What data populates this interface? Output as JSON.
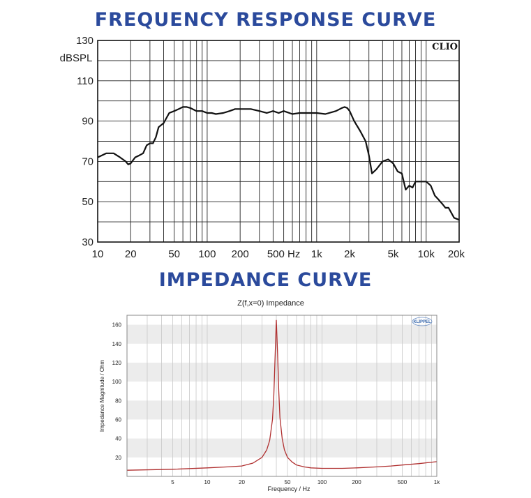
{
  "headings": {
    "frequency_response": "FREQUENCY RESPONSE CURVE",
    "impedance": "IMPEDANCE CURVE"
  },
  "chart_data": [
    {
      "type": "line",
      "title": "",
      "brand_label": "CLIO",
      "ylabel": "dBSPL",
      "xlabel": "",
      "x_scale": "log",
      "xlim": [
        10,
        20000
      ],
      "ylim": [
        30,
        130
      ],
      "grid": true,
      "y_ticks": [
        {
          "value": 30,
          "label": "30"
        },
        {
          "value": 50,
          "label": "50"
        },
        {
          "value": 70,
          "label": "70"
        },
        {
          "value": 90,
          "label": "90"
        },
        {
          "value": 110,
          "label": "110"
        },
        {
          "value": 130,
          "label": "130"
        }
      ],
      "x_ticks": [
        {
          "value": 10,
          "label": "10"
        },
        {
          "value": 20,
          "label": "20"
        },
        {
          "value": 50,
          "label": "50"
        },
        {
          "value": 100,
          "label": "100"
        },
        {
          "value": 200,
          "label": "200"
        },
        {
          "value": 500,
          "label": "500 Hz"
        },
        {
          "value": 1000,
          "label": "1k"
        },
        {
          "value": 2000,
          "label": "2k"
        },
        {
          "value": 5000,
          "label": "5k"
        },
        {
          "value": 10000,
          "label": "10k"
        },
        {
          "value": 20000,
          "label": "20k"
        }
      ],
      "series": [
        {
          "color": "#111111",
          "x": [
            10,
            12,
            14,
            16,
            18,
            19,
            20,
            22,
            24,
            26,
            28,
            30,
            32,
            34,
            36,
            40,
            45,
            50,
            55,
            60,
            65,
            70,
            80,
            90,
            100,
            110,
            120,
            140,
            160,
            180,
            200,
            250,
            300,
            350,
            400,
            450,
            500,
            600,
            700,
            800,
            1000,
            1200,
            1500,
            1700,
            1800,
            1900,
            2000,
            2200,
            2500,
            2800,
            3000,
            3200,
            3500,
            4000,
            4500,
            5000,
            5500,
            6000,
            6500,
            7000,
            7500,
            8000,
            9000,
            10000,
            11000,
            12000,
            13000,
            14000,
            15000,
            16000,
            18000,
            20000
          ],
          "y": [
            72,
            74,
            74,
            72,
            70,
            68.5,
            69,
            72,
            73,
            74,
            78,
            79,
            79,
            82,
            87,
            89,
            94,
            95,
            96,
            97,
            97,
            96.5,
            95,
            95,
            94,
            94,
            93.5,
            94,
            95,
            96,
            96,
            96,
            95,
            94,
            95,
            94,
            95,
            93.5,
            94,
            94,
            94,
            93.5,
            95,
            96.5,
            97,
            96.5,
            95,
            90,
            85,
            80,
            73,
            64,
            66,
            70,
            71,
            69,
            65,
            64,
            56,
            58,
            57,
            60,
            60,
            60,
            58,
            53,
            51,
            49,
            47,
            47,
            42,
            41
          ]
        }
      ]
    },
    {
      "type": "line",
      "title": "Z(f,x=0) Impedance",
      "brand_label": "KLIPPEL",
      "ylabel": "Impedance Magnitude / Ohm",
      "xlabel": "Frequency / Hz",
      "x_scale": "log",
      "xlim": [
        2,
        1000
      ],
      "ylim": [
        0,
        170
      ],
      "grid": true,
      "y_ticks": [
        {
          "value": 20,
          "label": "20"
        },
        {
          "value": 40,
          "label": "40"
        },
        {
          "value": 60,
          "label": "60"
        },
        {
          "value": 80,
          "label": "80"
        },
        {
          "value": 100,
          "label": "100"
        },
        {
          "value": 120,
          "label": "120"
        },
        {
          "value": 140,
          "label": "140"
        },
        {
          "value": 160,
          "label": "160"
        }
      ],
      "x_ticks": [
        {
          "value": 5,
          "label": "5"
        },
        {
          "value": 10,
          "label": "10"
        },
        {
          "value": 20,
          "label": "20"
        },
        {
          "value": 50,
          "label": "50"
        },
        {
          "value": 100,
          "label": "100"
        },
        {
          "value": 200,
          "label": "200"
        },
        {
          "value": 500,
          "label": "500"
        },
        {
          "value": 1000,
          "label": "1k"
        }
      ],
      "series": [
        {
          "color": "#b03030",
          "x": [
            2,
            5,
            10,
            15,
            20,
            25,
            30,
            33,
            35,
            37,
            38,
            39,
            40,
            41,
            42,
            43,
            45,
            47,
            50,
            55,
            60,
            70,
            80,
            100,
            150,
            200,
            300,
            400,
            500,
            700,
            1000
          ],
          "y": [
            6.5,
            7.5,
            9,
            10,
            11,
            14,
            20,
            28,
            38,
            60,
            85,
            125,
            165,
            130,
            90,
            62,
            40,
            28,
            20,
            15,
            12,
            10,
            9,
            8.5,
            8.5,
            9,
            10,
            11,
            12,
            13.5,
            15.5
          ]
        }
      ]
    }
  ]
}
